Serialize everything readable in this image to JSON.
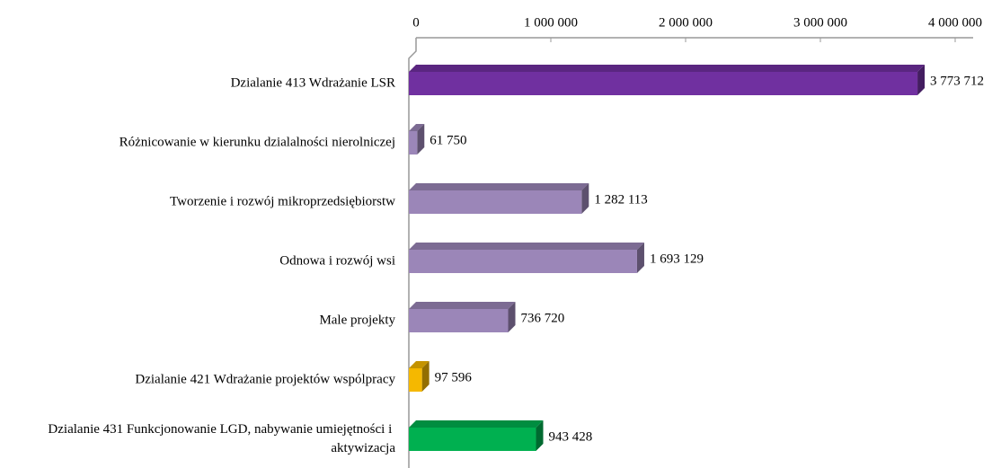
{
  "chart_data": {
    "type": "bar",
    "orientation": "horizontal",
    "categories": [
      "Dzialanie 413 Wdrażanie LSR",
      "Różnicowanie w kierunku dzialalności nierolniczej",
      "Tworzenie i rozwój mikroprzedsiębiorstw",
      "Odnowa i rozwój wsi",
      "Male projekty",
      "Dzialanie 421 Wdrażanie projektów wspólpracy",
      "Dzialanie 431 Funkcjonowanie LGD, nabywanie umiejętności i aktywizacja"
    ],
    "values": [
      3773712,
      61750,
      1282113,
      1693129,
      736720,
      97596,
      943428
    ],
    "value_labels": [
      "3 773 712",
      "61 750",
      "1 282 113",
      "1 693 129",
      "736 720",
      "97 596",
      "943 428"
    ],
    "colors": [
      "#7030a0",
      "#9b86b8",
      "#9b86b8",
      "#9b86b8",
      "#9b86b8",
      "#f5b800",
      "#00b050"
    ],
    "xlim": [
      0,
      4000000
    ],
    "xticks": [
      0,
      {
        "value": 1000000,
        "label": "1 000 000"
      },
      {
        "value": 2000000,
        "label": "2 000 000"
      },
      {
        "value": 3000000,
        "label": "3 000 000"
      },
      {
        "value": 4000000,
        "label": "4 000 000"
      }
    ],
    "axis_position": "top",
    "grid": false
  }
}
